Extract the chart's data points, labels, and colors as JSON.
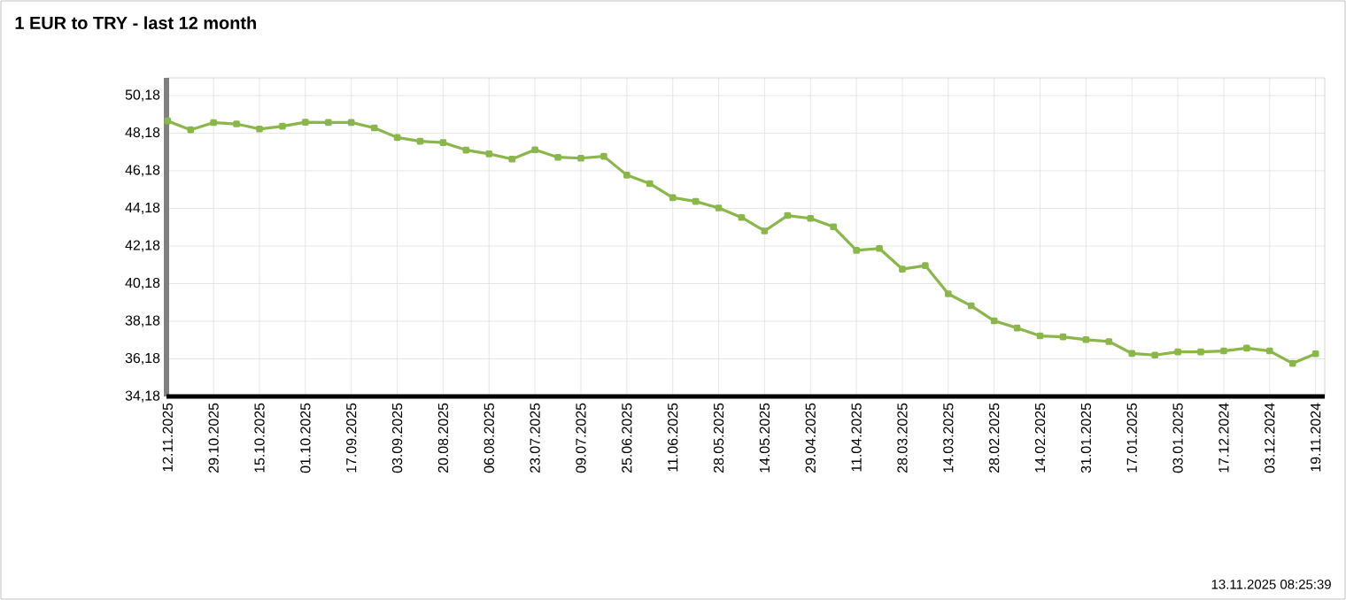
{
  "chart_data": {
    "type": "line",
    "title": "1 EUR to TRY - last 12 month",
    "annotations": [
      "13.11.2025 08:25:39"
    ],
    "categories": [
      "12.11.2025",
      null,
      "29.10.2025",
      null,
      "15.10.2025",
      null,
      "01.10.2025",
      null,
      "17.09.2025",
      null,
      "03.09.2025",
      null,
      "20.08.2025",
      null,
      "06.08.2025",
      null,
      "23.07.2025",
      null,
      "09.07.2025",
      null,
      "25.06.2025",
      null,
      "11.06.2025",
      null,
      "28.05.2025",
      null,
      "14.05.2025",
      null,
      "29.04.2025",
      null,
      "11.04.2025",
      null,
      "28.03.2025",
      null,
      "14.03.2025",
      null,
      "28.02.2025",
      null,
      "14.02.2025",
      null,
      "31.01.2025",
      null,
      "17.01.2025",
      null,
      "03.01.2025",
      null,
      "17.12.2024",
      null,
      "03.12.2024",
      null,
      "19.11.2024"
    ],
    "series": [
      {
        "color": "#8ab64a",
        "values": [
          48.83,
          48.36,
          48.74,
          48.67,
          48.4,
          48.55,
          48.76,
          48.75,
          48.75,
          48.46,
          47.95,
          47.75,
          47.68,
          47.28,
          47.08,
          46.8,
          47.3,
          46.9,
          46.85,
          46.95,
          45.95,
          45.5,
          44.75,
          44.55,
          44.2,
          43.7,
          42.98,
          43.8,
          43.65,
          43.2,
          41.95,
          42.05,
          40.95,
          41.14,
          39.64,
          39.0,
          38.2,
          37.82,
          37.4,
          37.35,
          37.2,
          37.1,
          36.47,
          36.38,
          36.55,
          36.55,
          36.6,
          36.75,
          36.6,
          35.94,
          36.45
        ]
      }
    ],
    "ylim": [
      34.18,
      51.12
    ],
    "yticks": [
      {
        "value": 34.18,
        "label": "34,18"
      },
      {
        "value": 36.18,
        "label": "36,18"
      },
      {
        "value": 38.18,
        "label": "38,18"
      },
      {
        "value": 40.18,
        "label": "40,18"
      },
      {
        "value": 42.18,
        "label": "42,18"
      },
      {
        "value": 44.18,
        "label": "44,18"
      },
      {
        "value": 46.18,
        "label": "46,18"
      },
      {
        "value": 48.18,
        "label": "48,18"
      },
      {
        "value": 50.18,
        "label": "50,18"
      }
    ],
    "grid": true,
    "marker": "square",
    "line_style": "solid"
  }
}
